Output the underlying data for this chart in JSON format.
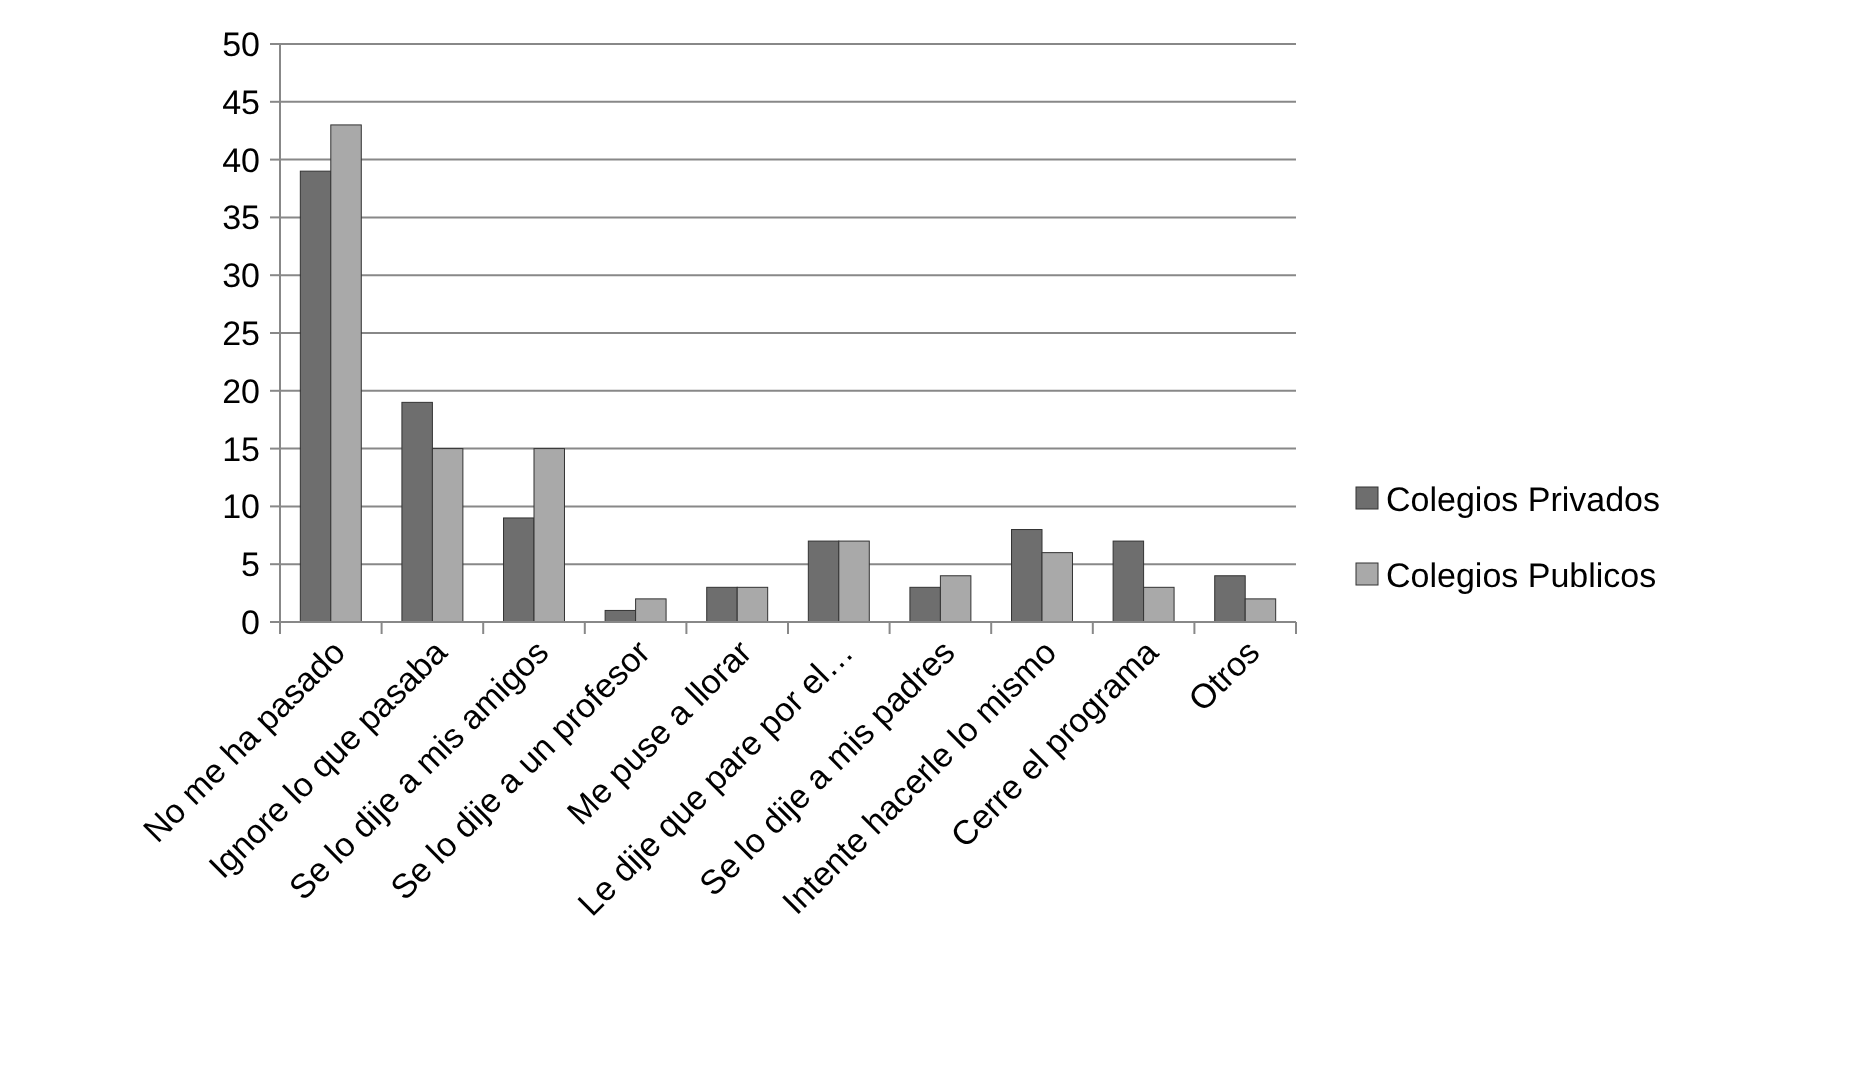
{
  "chart_data": {
    "type": "bar",
    "categories": [
      "No me ha pasado",
      "Ignore lo que pasaba",
      "Se lo dije a mis amigos",
      "Se lo dije a un profesor",
      "Me puse a llorar",
      "Le dije que pare por el…",
      "Se lo dije a mis padres",
      "Intente hacerle lo mismo",
      "Cerre el programa",
      "Otros"
    ],
    "series": [
      {
        "name": "Colegios Privados",
        "color": "#6e6e6e",
        "values": [
          39,
          19,
          9,
          1,
          3,
          7,
          3,
          8,
          7,
          4
        ]
      },
      {
        "name": "Colegios Publicos",
        "color": "#a9a9a9",
        "values": [
          43,
          15,
          15,
          2,
          3,
          7,
          4,
          6,
          3,
          2
        ]
      }
    ],
    "ylim": [
      0,
      50
    ],
    "yticks": [
      0,
      5,
      10,
      15,
      20,
      25,
      30,
      35,
      40,
      45,
      50
    ],
    "grid": "y",
    "legend": "right"
  }
}
